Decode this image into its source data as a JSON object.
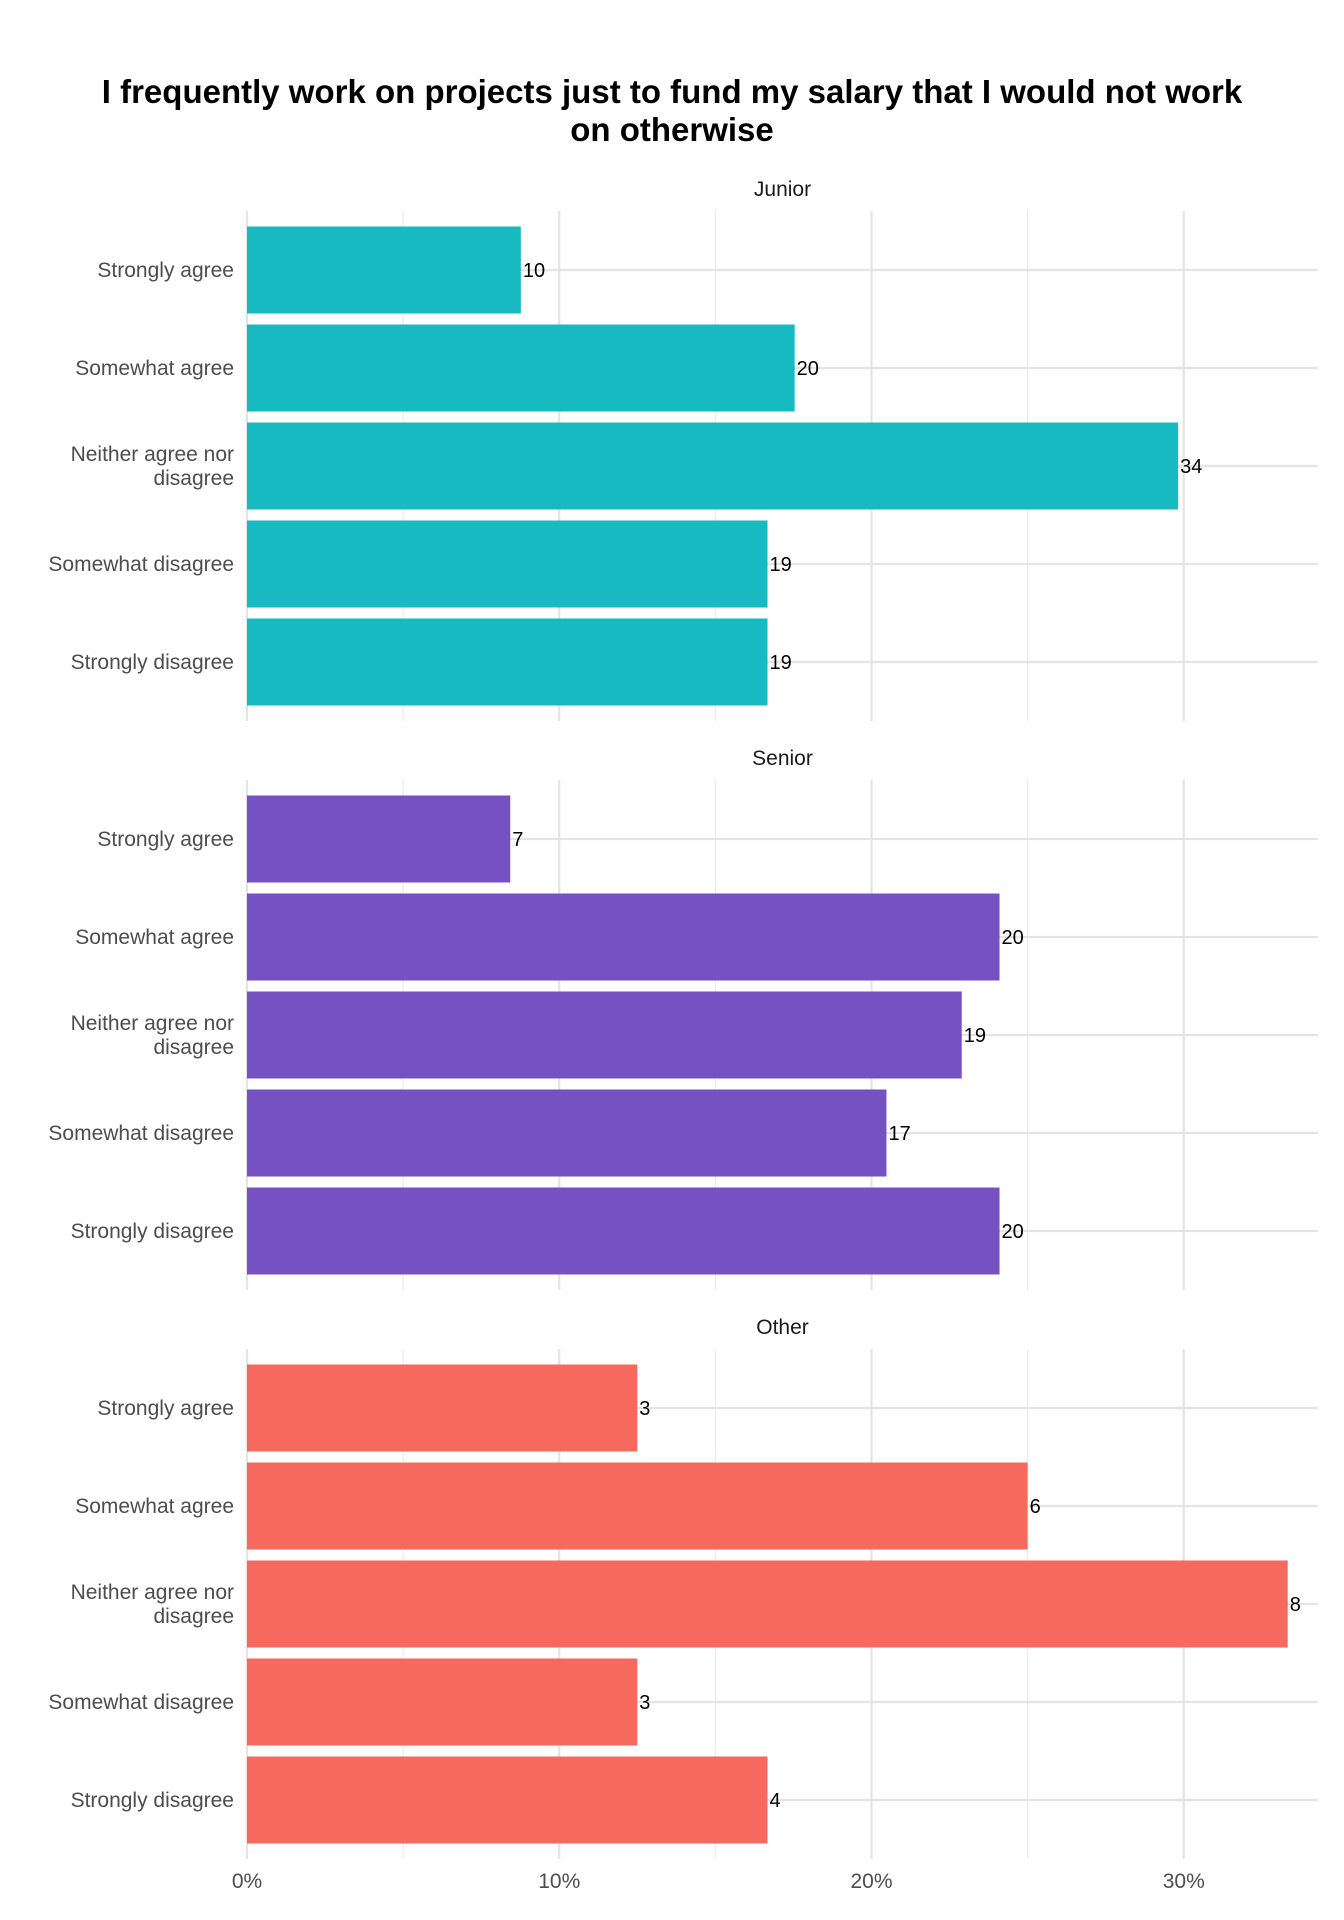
{
  "chart_data": {
    "type": "bar",
    "orientation": "horizontal",
    "title": "I frequently work on projects just to fund my salary that I would not work on otherwise",
    "categories": [
      "Strongly agree",
      "Somewhat agree",
      "Neither agree nor disagree",
      "Somewhat disagree",
      "Strongly disagree"
    ],
    "x_axis": {
      "range": [
        0,
        0.343
      ],
      "ticks": [
        0,
        0.1,
        0.2,
        0.3
      ],
      "tick_labels": [
        "0%",
        "10%",
        "20%",
        "30%"
      ]
    },
    "grid": true,
    "panels": [
      {
        "strip_label": "Junior",
        "color": "#17BAC1",
        "counts": [
          10,
          20,
          34,
          19,
          19
        ],
        "percent_values": [
          0.0877,
          0.1754,
          0.2982,
          0.1667,
          0.1667
        ]
      },
      {
        "strip_label": "Senior",
        "color": "#7551C2",
        "counts": [
          7,
          20,
          19,
          17,
          20
        ],
        "percent_values": [
          0.0843,
          0.241,
          0.2289,
          0.2048,
          0.241
        ]
      },
      {
        "strip_label": "Other",
        "color": "#F5695F",
        "counts": [
          3,
          6,
          8,
          3,
          4
        ],
        "percent_values": [
          0.125,
          0.25,
          0.3333,
          0.125,
          0.1667
        ]
      }
    ]
  }
}
